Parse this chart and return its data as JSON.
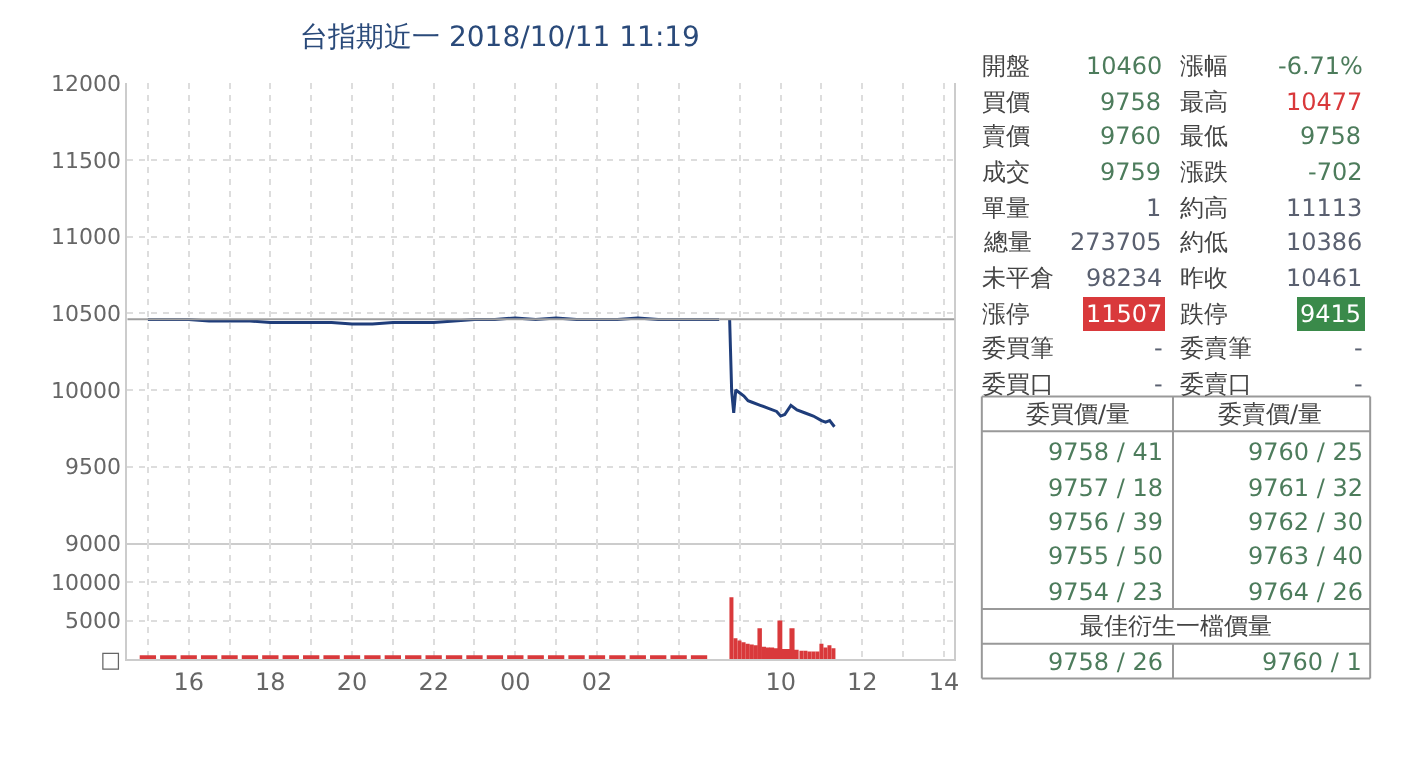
{
  "chart_data": [
    {
      "type": "line",
      "title": "台指期近一 2018/10/11 11:19",
      "x": [
        "2018-10-10T15:00",
        "2018-10-10T15:30",
        "2018-10-10T16:00",
        "2018-10-10T16:30",
        "2018-10-10T17:00",
        "2018-10-10T17:30",
        "2018-10-10T18:00",
        "2018-10-10T18:30",
        "2018-10-10T19:00",
        "2018-10-10T19:30",
        "2018-10-10T20:00",
        "2018-10-10T20:30",
        "2018-10-10T21:00",
        "2018-10-10T21:30",
        "2018-10-10T22:00",
        "2018-10-10T22:30",
        "2018-10-10T23:00",
        "2018-10-10T23:30",
        "2018-10-11T00:00",
        "2018-10-11T00:30",
        "2018-10-11T01:00",
        "2018-10-11T01:30",
        "2018-10-11T02:00",
        "2018-10-11T02:30",
        "2018-10-11T03:00",
        "2018-10-11T03:30",
        "2018-10-11T04:00",
        "2018-10-11T04:30",
        "2018-10-11T05:00"
      ],
      "series": [
        {
          "color": "#1f3d7a",
          "values": [
            10460,
            10460,
            10460,
            10450,
            10450,
            10450,
            10440,
            10440,
            10440,
            10440,
            10430,
            10430,
            10440,
            10440,
            10440,
            10450,
            10460,
            10460,
            10470,
            10460,
            10470,
            10460,
            10460,
            10460,
            10470,
            10460,
            10460,
            10460,
            10460
          ]
        }
      ],
      "xlim": [
        "2018-10-10T14:30",
        "2018-10-11T05:00"
      ],
      "xticks": [
        {
          "value": "2018-10-10T15:00",
          "label": null
        },
        {
          "value": "2018-10-10T16:00",
          "label": null
        },
        {
          "value": "2018-10-10T17:00",
          "label": null
        },
        {
          "value": "2018-10-10T18:00",
          "label": null
        },
        {
          "value": "2018-10-10T19:00",
          "label": null
        },
        {
          "value": "2018-10-10T20:00",
          "label": null
        },
        {
          "value": "2018-10-10T21:00",
          "label": null
        },
        {
          "value": "2018-10-10T22:00",
          "label": null
        },
        {
          "value": "2018-10-10T23:00",
          "label": null
        },
        {
          "value": "2018-10-11T00:00",
          "label": null
        },
        {
          "value": "2018-10-11T01:00",
          "label": null
        },
        {
          "value": "2018-10-11T02:00",
          "label": null
        },
        {
          "value": "2018-10-11T03:00",
          "label": null
        },
        {
          "value": "2018-10-11T04:00",
          "label": null
        }
      ],
      "ylim": [
        9000,
        12000
      ],
      "yticks": [
        9000,
        9500,
        10000,
        10500,
        11000,
        11500,
        12000
      ],
      "ref_lines": [
        {
          "axis": "y",
          "value": 10461,
          "color": "#9e9e9e"
        }
      ],
      "grid": true,
      "tick_labels": "y"
    },
    {
      "type": "line",
      "x": [
        "2018-10-11T08:45",
        "2018-10-11T08:48",
        "2018-10-11T08:51",
        "2018-10-11T08:54",
        "2018-10-11T09:00",
        "2018-10-11T09:06",
        "2018-10-11T09:12",
        "2018-10-11T09:18",
        "2018-10-11T09:30",
        "2018-10-11T09:42",
        "2018-10-11T09:54",
        "2018-10-11T10:00",
        "2018-10-11T10:06",
        "2018-10-11T10:15",
        "2018-10-11T10:24",
        "2018-10-11T10:36",
        "2018-10-11T10:48",
        "2018-10-11T11:00",
        "2018-10-11T11:06",
        "2018-10-11T11:12",
        "2018-10-11T11:19"
      ],
      "series": [
        {
          "color": "#1f3d7a",
          "values": [
            10460,
            9990,
            9850,
            10000,
            9980,
            9960,
            9930,
            9920,
            9900,
            9880,
            9860,
            9830,
            9840,
            9900,
            9870,
            9850,
            9830,
            9800,
            9790,
            9800,
            9760
          ]
        }
      ],
      "xlim": [
        "2018-10-11T08:30",
        "2018-10-11T14:15"
      ],
      "xticks": [
        {
          "value": "2018-10-11T09:00",
          "label": null
        },
        {
          "value": "2018-10-11T10:00",
          "label": null
        },
        {
          "value": "2018-10-11T11:00",
          "label": null
        },
        {
          "value": "2018-10-11T12:00",
          "label": null
        },
        {
          "value": "2018-10-11T13:00",
          "label": null
        },
        {
          "value": "2018-10-11T14:00",
          "label": null
        }
      ],
      "ylim": [
        9000,
        12000
      ],
      "yticks": [
        9000,
        9500,
        10000,
        10500,
        11000,
        11500,
        12000
      ],
      "ref_lines": [
        {
          "axis": "y",
          "value": 10461,
          "color": "#9e9e9e"
        }
      ],
      "grid": true,
      "tick_labels": false
    },
    {
      "type": "bar",
      "x": [
        "2018-10-10T15:00",
        "2018-10-10T15:30",
        "2018-10-10T16:00",
        "2018-10-10T16:30",
        "2018-10-10T17:00",
        "2018-10-10T17:30",
        "2018-10-10T18:00",
        "2018-10-10T18:30",
        "2018-10-10T19:00",
        "2018-10-10T19:30",
        "2018-10-10T20:00",
        "2018-10-10T20:30",
        "2018-10-10T21:00",
        "2018-10-10T21:30",
        "2018-10-10T22:00",
        "2018-10-10T22:30",
        "2018-10-10T23:00",
        "2018-10-10T23:30",
        "2018-10-11T00:00",
        "2018-10-11T00:30",
        "2018-10-11T01:00",
        "2018-10-11T01:30",
        "2018-10-11T02:00",
        "2018-10-11T02:30",
        "2018-10-11T03:00",
        "2018-10-11T03:30",
        "2018-10-11T04:00",
        "2018-10-11T04:30"
      ],
      "series": [
        {
          "color": "#d9393b",
          "values": [
            300,
            300,
            300,
            300,
            300,
            300,
            300,
            300,
            300,
            300,
            300,
            300,
            300,
            300,
            300,
            300,
            300,
            300,
            300,
            300,
            300,
            300,
            300,
            300,
            300,
            300,
            300,
            300
          ]
        }
      ],
      "xlim": [
        "2018-10-10T14:30",
        "2018-10-11T05:00"
      ],
      "xticks": [
        {
          "value": "2018-10-10T15:00",
          "label": null
        },
        {
          "value": "2018-10-10T16:00",
          "label": "16"
        },
        {
          "value": "2018-10-10T17:00",
          "label": null
        },
        {
          "value": "2018-10-10T18:00",
          "label": "18"
        },
        {
          "value": "2018-10-10T19:00",
          "label": null
        },
        {
          "value": "2018-10-10T20:00",
          "label": "20"
        },
        {
          "value": "2018-10-10T21:00",
          "label": null
        },
        {
          "value": "2018-10-10T22:00",
          "label": "22"
        },
        {
          "value": "2018-10-10T23:00",
          "label": null
        },
        {
          "value": "2018-10-11T00:00",
          "label": "00"
        },
        {
          "value": "2018-10-11T01:00",
          "label": null
        },
        {
          "value": "2018-10-11T02:00",
          "label": "02"
        },
        {
          "value": "2018-10-11T03:00",
          "label": null
        },
        {
          "value": "2018-10-11T04:00",
          "label": null
        }
      ],
      "ylim": [
        0,
        15000
      ],
      "yticks": [
        {
          "value": 0,
          "label": "□"
        },
        5000,
        10000
      ],
      "grid": true
    },
    {
      "type": "bar",
      "x": [
        "2018-10-11T08:48",
        "2018-10-11T08:54",
        "2018-10-11T09:00",
        "2018-10-11T09:06",
        "2018-10-11T09:12",
        "2018-10-11T09:18",
        "2018-10-11T09:24",
        "2018-10-11T09:30",
        "2018-10-11T09:36",
        "2018-10-11T09:42",
        "2018-10-11T09:48",
        "2018-10-11T09:54",
        "2018-10-11T10:00",
        "2018-10-11T10:06",
        "2018-10-11T10:12",
        "2018-10-11T10:18",
        "2018-10-11T10:24",
        "2018-10-11T10:30",
        "2018-10-11T10:36",
        "2018-10-11T10:42",
        "2018-10-11T10:48",
        "2018-10-11T10:54",
        "2018-10-11T11:00",
        "2018-10-11T11:06",
        "2018-10-11T11:12",
        "2018-10-11T11:18"
      ],
      "series": [
        {
          "color": "#d9393b",
          "values": [
            8000,
            2700,
            2400,
            2200,
            2000,
            1900,
            1800,
            4000,
            1600,
            1500,
            1500,
            1400,
            5000,
            1300,
            1300,
            4000,
            1200,
            1100,
            1100,
            1000,
            1000,
            1000,
            2000,
            1500,
            1800,
            1400
          ]
        }
      ],
      "xlim": [
        "2018-10-11T08:30",
        "2018-10-11T14:15"
      ],
      "xticks": [
        {
          "value": "2018-10-11T09:00",
          "label": null
        },
        {
          "value": "2018-10-11T10:00",
          "label": "10"
        },
        {
          "value": "2018-10-11T11:00",
          "label": null
        },
        {
          "value": "2018-10-11T12:00",
          "label": "12"
        },
        {
          "value": "2018-10-11T13:00",
          "label": null
        },
        {
          "value": "2018-10-11T14:00",
          "label": "14"
        }
      ],
      "ylim": [
        0,
        15000
      ],
      "yticks": [
        0,
        5000,
        10000
      ],
      "grid": true,
      "tick_labels": "x"
    },
    {
      "type": "other",
      "annotations": [
        "開盤",
        "10460",
        "漲幅",
        "-6.71%",
        "買價",
        "9758",
        "最高",
        "10477",
        "賣價",
        "9760",
        "最低",
        "9758",
        "成交",
        "9759",
        "漲跌",
        "-702",
        "單量",
        "1",
        "約高",
        "11113",
        "總量",
        "273705",
        "約低",
        "10386",
        "未平倉",
        "98234",
        "昨收",
        "10461",
        "漲停",
        "11507",
        "跌停",
        "9415",
        "委買筆",
        "-",
        "委賣筆",
        "-",
        "委買口",
        "-",
        "委賣口",
        "-",
        "委買價/量",
        "委賣價/量",
        "9758 / 41",
        "9760 / 25",
        "9757 / 18",
        "9761 / 32",
        "9756 / 39",
        "9762 / 30",
        "9755 / 50",
        "9763 / 40",
        "9754 / 23",
        "9764 / 26",
        "最佳衍生一檔價量",
        "9758 / 26",
        "9760 / 1"
      ]
    }
  ]
}
